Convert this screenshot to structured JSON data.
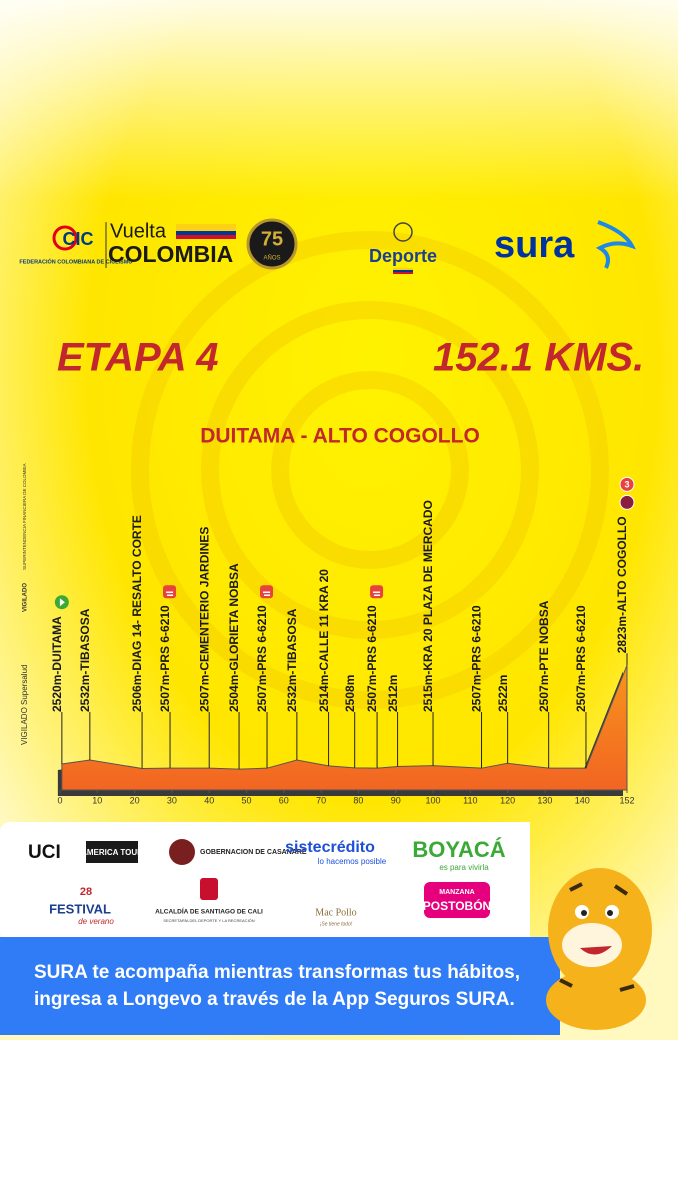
{
  "header": {
    "fcc": "FEDERACIÓN COLOMBIANA DE CICLISMO",
    "fcc_short": "CIC",
    "vuelta": "Vuelta",
    "colombia": "COLOMBIA",
    "anniversary": "75",
    "anniversary_unit": "AÑOS",
    "deporte": "Deporte",
    "sura": "sura"
  },
  "stage": {
    "title": "ETAPA 4",
    "distance": "152.1 KMS.",
    "route": "DUITAMA - ALTO COGOLLO"
  },
  "side_notes": {
    "vigilado": "VIGILADO",
    "superfinanciera": "SUPERINTENDENCIA FINANCIERA DE COLOMBIA",
    "supersalud": "VIGILADO Supersalud"
  },
  "profile": {
    "xlim": [
      0,
      152
    ],
    "ylim": [
      2440,
      2830
    ],
    "xticks": [
      0,
      10,
      20,
      30,
      40,
      50,
      60,
      70,
      80,
      90,
      100,
      110,
      120,
      130,
      140,
      152
    ],
    "waypoints": [
      {
        "label": "2520m-DUITAMA",
        "km": 0.5,
        "elevation": 2520,
        "start": true
      },
      {
        "label": "2532m-TIBASOSA",
        "km": 8,
        "elevation": 2532
      },
      {
        "label": "2506m-DIAG 14- RESALTO CORTE",
        "km": 22,
        "elevation": 2506
      },
      {
        "label": "2507m-PRS 6-6210",
        "km": 29.5,
        "elevation": 2507,
        "sprint": true
      },
      {
        "label": "2507m-CEMENTERIO JARDINES",
        "km": 40,
        "elevation": 2507
      },
      {
        "label": "2504m-GLORIETA NOBSA",
        "km": 48,
        "elevation": 2504
      },
      {
        "label": "2507m-PRS 6-6210",
        "km": 55.5,
        "elevation": 2507,
        "sprint": true
      },
      {
        "label": "2532m-TIBASOSA",
        "km": 63.5,
        "elevation": 2532
      },
      {
        "label": "2514m-CALLE 11 KRA 20",
        "km": 72,
        "elevation": 2514
      },
      {
        "label": "2508m",
        "km": 79,
        "elevation": 2508
      },
      {
        "label": "2507m-PRS 6-6210",
        "km": 85,
        "elevation": 2507,
        "sprint": true
      },
      {
        "label": "2512m",
        "km": 90.5,
        "elevation": 2512
      },
      {
        "label": "2515m-KRA 20 PLAZA DE MERCADO",
        "km": 100,
        "elevation": 2515
      },
      {
        "label": "2507m-PRS 6-6210",
        "km": 113,
        "elevation": 2507
      },
      {
        "label": "2522m",
        "km": 120,
        "elevation": 2522
      },
      {
        "label": "2507m-PTE NOBSA",
        "km": 131,
        "elevation": 2507
      },
      {
        "label": "2507m-PRS 6-6210",
        "km": 141,
        "elevation": 2507
      },
      {
        "label": "2823m-ALTO COGOLLO",
        "km": 152,
        "elevation": 2823,
        "category": "3"
      }
    ]
  },
  "sponsors": {
    "uci": "UCI",
    "america_tour": "AMERICA TOUR",
    "casanare": "GOBERNACION DE CASANARE",
    "sistecredito": "sistecrédito",
    "sistecredito_slogan": "lo hacemos posible",
    "boyaca": "BOYACÁ",
    "boyaca_slogan": "es para vivirla",
    "festival_number": "28",
    "festival": "FESTIVAL",
    "festival_sub": "de verano",
    "cali": "ALCALDÍA DE SANTIAGO DE CALI",
    "cali_sub": "SECRETARÍA DEL DEPORTE Y LA RECREACIÓN",
    "macpollo": "Mac Pollo",
    "macpollo_slogan": "¡Se tiene todo!",
    "manzana": "MANZANA",
    "postobon": "POSTOBÓN"
  },
  "banner": {
    "line1": "SURA te acompaña mientras transformas tus hábitos,",
    "line2": "ingresa a Longevo a través de la App Seguros SURA."
  }
}
